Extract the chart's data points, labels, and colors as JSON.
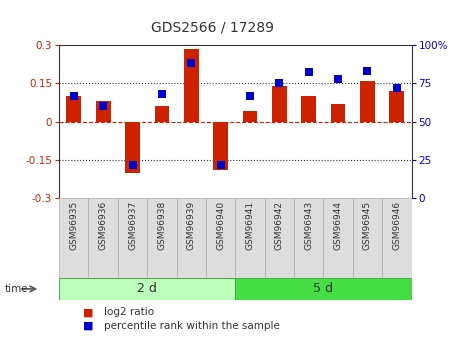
{
  "title": "GDS2566 / 17289",
  "samples": [
    "GSM96935",
    "GSM96936",
    "GSM96937",
    "GSM96938",
    "GSM96939",
    "GSM96940",
    "GSM96941",
    "GSM96942",
    "GSM96943",
    "GSM96944",
    "GSM96945",
    "GSM96946"
  ],
  "log2_ratio": [
    0.1,
    0.08,
    -0.2,
    0.06,
    0.285,
    -0.19,
    0.04,
    0.14,
    0.1,
    0.07,
    0.16,
    0.12
  ],
  "percentile_rank": [
    67,
    60,
    22,
    68,
    88,
    22,
    67,
    75,
    82,
    78,
    83,
    72
  ],
  "groups": [
    {
      "label": "2 d",
      "start": 0,
      "end": 6,
      "color": "#bbffbb"
    },
    {
      "label": "5 d",
      "start": 6,
      "end": 12,
      "color": "#44dd44"
    }
  ],
  "ylim_left": [
    -0.3,
    0.3
  ],
  "ylim_right": [
    0,
    100
  ],
  "bar_color": "#cc2200",
  "dot_color": "#0000cc",
  "bg_color": "#ffffff",
  "axis_color_left": "#cc2200",
  "axis_color_right": "#0000cc",
  "legend_items": [
    {
      "label": "log2 ratio",
      "color": "#cc2200"
    },
    {
      "label": "percentile rank within the sample",
      "color": "#0000cc"
    }
  ],
  "time_label": "time",
  "group_label_fontsize": 9,
  "tick_label_fontsize": 6.5,
  "title_fontsize": 10
}
